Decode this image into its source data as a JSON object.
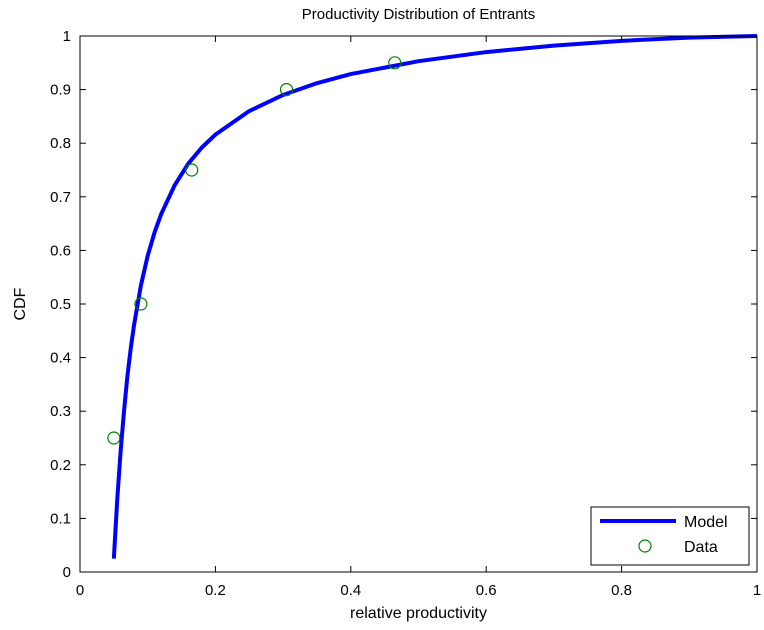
{
  "chart_data": {
    "type": "line",
    "title": "Productivity Distribution of Entrants",
    "xlabel": "relative productivity",
    "ylabel": "CDF",
    "xlim": [
      0,
      1
    ],
    "ylim": [
      0,
      1
    ],
    "xticks": [
      0,
      0.2,
      0.4,
      0.6,
      0.8,
      1
    ],
    "xtick_labels": [
      "0",
      "0.2",
      "0.4",
      "0.6",
      "0.8",
      "1"
    ],
    "yticks": [
      0,
      0.1,
      0.2,
      0.3,
      0.4,
      0.5,
      0.6,
      0.7,
      0.8,
      0.9,
      1
    ],
    "ytick_labels": [
      "0",
      "0.1",
      "0.2",
      "0.3",
      "0.4",
      "0.5",
      "0.6",
      "0.7",
      "0.8",
      "0.9",
      "1"
    ],
    "grid": false,
    "legend_position": "bottom-right",
    "series": [
      {
        "name": "Model",
        "kind": "line",
        "color": "#0000ff",
        "x": [
          0.05,
          0.055,
          0.06,
          0.065,
          0.07,
          0.075,
          0.08,
          0.09,
          0.1,
          0.11,
          0.12,
          0.14,
          0.16,
          0.18,
          0.2,
          0.25,
          0.3,
          0.35,
          0.4,
          0.5,
          0.6,
          0.7,
          0.8,
          0.9,
          1.0
        ],
        "y": [
          0.025,
          0.135,
          0.225,
          0.3,
          0.365,
          0.418,
          0.462,
          0.535,
          0.59,
          0.633,
          0.668,
          0.722,
          0.762,
          0.792,
          0.816,
          0.86,
          0.89,
          0.912,
          0.929,
          0.953,
          0.97,
          0.982,
          0.991,
          0.997,
          1.0
        ]
      },
      {
        "name": "Data",
        "kind": "scatter",
        "marker": "circle",
        "color": "#008000",
        "x": [
          0.05,
          0.09,
          0.165,
          0.305,
          0.465
        ],
        "y": [
          0.25,
          0.5,
          0.75,
          0.9,
          0.95
        ]
      }
    ]
  }
}
